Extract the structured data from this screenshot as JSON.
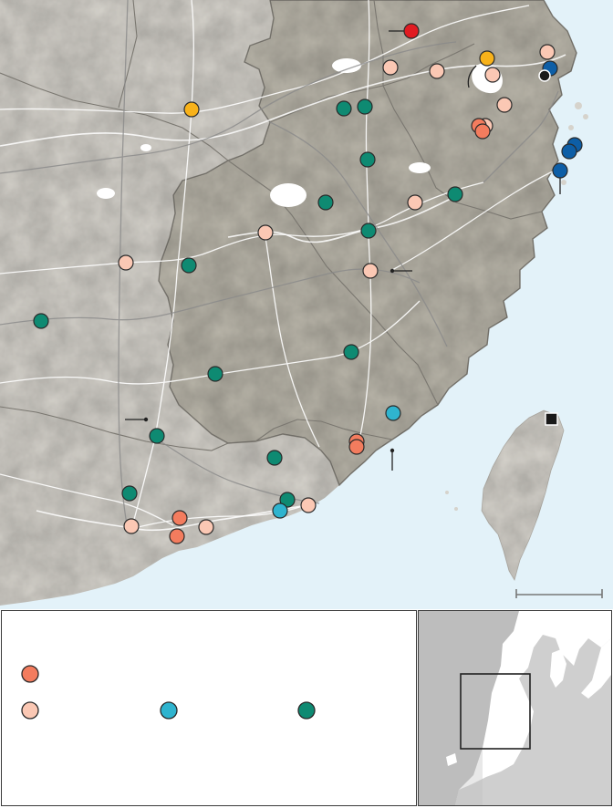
{
  "map": {
    "colors": {
      "sea": "#e3f2f9",
      "land": "#d6d3cc",
      "region": "#bab6aa",
      "border": "#7a7770",
      "road": "#ffffff",
      "rail": "#8a8a8a",
      "water": "#ffffff"
    },
    "markers": {
      "cat_red": "#e11b22",
      "cat_yellow": "#f8b21a",
      "cat_orange": "#f37c5e",
      "cat_peach": "#fbc8b4",
      "cat_cyan": "#2fb4cf",
      "cat_teal": "#0e8a72",
      "cat_blue": "#0d5ea6",
      "cat_black": "#1a1a1a"
    },
    "icons": {
      "capital_marker": "black-square-marker",
      "scale_bar": "scale-bar"
    }
  },
  "legend": {
    "items": [
      {
        "category": "orange",
        "color": "#f37c5e",
        "label": ""
      },
      {
        "category": "peach",
        "color": "#fbc8b4",
        "label": ""
      },
      {
        "category": "cyan",
        "color": "#2fb4cf",
        "label": ""
      },
      {
        "category": "teal",
        "color": "#0e8a72",
        "label": ""
      }
    ]
  },
  "inset": {
    "colors": {
      "land": "#ffffff",
      "sea": "#cfcfcf",
      "box": "#222222"
    }
  }
}
